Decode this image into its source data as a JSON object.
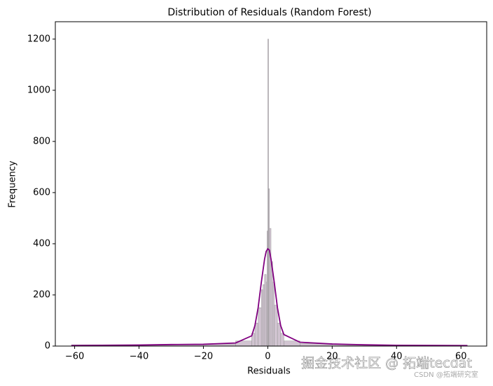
{
  "chart_data": {
    "type": "histogram",
    "title": "Distribution of Residuals (Random Forest)",
    "x_label": "Residuals",
    "y_label": "Frequency",
    "bins": [
      -61,
      -20,
      -10,
      -5,
      -4,
      -3,
      -2,
      -1.5,
      -1,
      -0.5,
      -0.25,
      0,
      0.25,
      0.5,
      1,
      1.5,
      2,
      3,
      4,
      5,
      10,
      20,
      62
    ],
    "counts": [
      5,
      8,
      20,
      50,
      90,
      150,
      220,
      240,
      280,
      250,
      450,
      1200,
      615,
      460,
      330,
      250,
      160,
      90,
      50,
      20,
      10,
      3
    ],
    "color": "#c6b5c6",
    "kde": {
      "color": "#800080",
      "x": [
        -61,
        -40,
        -30,
        -20,
        -10,
        -5,
        -4,
        -3,
        -2,
        -1,
        -0.5,
        0,
        0.5,
        1,
        2,
        3,
        4,
        5,
        10,
        20,
        30,
        40,
        62
      ],
      "values": [
        2,
        4,
        6,
        7,
        12,
        40,
        80,
        150,
        250,
        340,
        370,
        380,
        375,
        340,
        250,
        150,
        80,
        45,
        15,
        8,
        5,
        3,
        2
      ]
    },
    "xlim": [
      -66,
      68
    ],
    "ylim": [
      0,
      1268
    ],
    "xticks": [
      {
        "value": -60,
        "label": "−60"
      },
      {
        "value": -40,
        "label": "−40"
      },
      {
        "value": -20,
        "label": "−20"
      },
      0,
      20,
      40,
      60
    ],
    "yticks": [
      0,
      200,
      400,
      600,
      800,
      1000,
      1200
    ],
    "watermark": "掘金技术社区 @ 拓端tecdat",
    "watermark_small": "CSDN @拓端研究室"
  }
}
